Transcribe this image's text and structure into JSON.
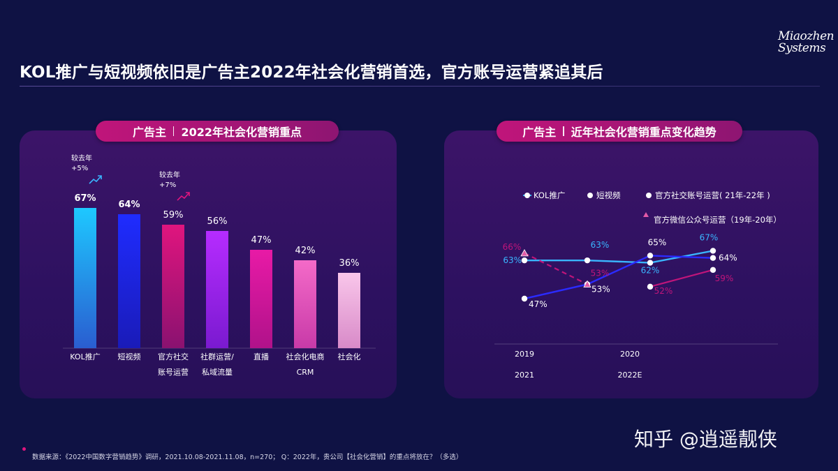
{
  "header": {
    "title": "KOL推广与短视频依旧是广告主2022年社会化营销首选，官方账号运营紧追其后",
    "logo_lines": [
      "Miaozhen",
      "Systems"
    ]
  },
  "left_panel": {
    "pill_left": "广告主",
    "pill_right": "2022年社会化营销重点"
  },
  "right_panel": {
    "pill_left": "广告主",
    "pill_right": "近年社会化营销重点变化趋势"
  },
  "chart_data": [
    {
      "type": "bar",
      "categories": [
        [
          "KOL推广"
        ],
        [
          "短视频"
        ],
        [
          "官方社交",
          "账号运营"
        ],
        [
          "社群运营/",
          "私域流量"
        ],
        [
          "直播"
        ],
        [
          "社会化电商",
          "CRM"
        ],
        [
          "社会化"
        ]
      ],
      "values": [
        67,
        64,
        59,
        56,
        47,
        42,
        36
      ],
      "value_labels": [
        "67%",
        "64%",
        "59%",
        "56%",
        "47%",
        "42%",
        "36%"
      ],
      "ylim": [
        0,
        100
      ],
      "bar_colors": [
        [
          "#1ec8ff",
          "#2a5dd0"
        ],
        [
          "#1f2cff",
          "#1a1bb8"
        ],
        [
          "#e0157e",
          "#8a1270"
        ],
        [
          "#b62cff",
          "#7a1ad0"
        ],
        [
          "#e81aa6",
          "#b0128a"
        ],
        [
          "#f46ac8",
          "#c83aa8"
        ],
        [
          "#f9c6ea",
          "#d88ac8"
        ]
      ],
      "annotations": [
        {
          "bar": 0,
          "lines": [
            "较去年",
            "+5%"
          ],
          "arrow_color": "#3ab6ff"
        },
        {
          "bar": 2,
          "lines": [
            "较去年",
            "+7%"
          ],
          "arrow_color": "#e0157e"
        }
      ]
    },
    {
      "type": "line",
      "x_labels_row1": [
        "2019",
        "2020"
      ],
      "x_labels_row2": [
        "2021",
        "2022E"
      ],
      "ylim": [
        40,
        75
      ],
      "series": [
        {
          "name": "KOL推广",
          "values": [
            63,
            63,
            62,
            67
          ],
          "labels": [
            "63%",
            "63%",
            "62%",
            "67%"
          ],
          "color": "#3ab6ff",
          "style": "solid"
        },
        {
          "name": "短视频",
          "values": [
            47,
            53,
            65,
            64
          ],
          "labels": [
            "47%",
            "53%",
            "65%",
            "64%"
          ],
          "color": "#2b2bff",
          "style": "solid"
        },
        {
          "name": "官方社交账号运营( 21年-22年 )",
          "values": [
            null,
            null,
            52,
            59
          ],
          "labels": [
            "",
            "",
            "52%",
            "59%"
          ],
          "color": "#c0157a",
          "style": "solid"
        },
        {
          "name": "官方微信公众号运营（19年-20年）",
          "values": [
            66,
            53,
            null,
            null
          ],
          "labels": [
            "66%",
            "53%",
            "",
            ""
          ],
          "color": "#c0157a",
          "style": "dashed"
        }
      ]
    }
  ],
  "footer": {
    "source": "数据来源：《2022中国数字营销趋势》调研，2021.10.08-2021.11.08，n=270； Q：2022年，贵公司【社会化营销】的重点将放在？（多选）"
  },
  "watermark": "知乎 @逍遥靓侠"
}
